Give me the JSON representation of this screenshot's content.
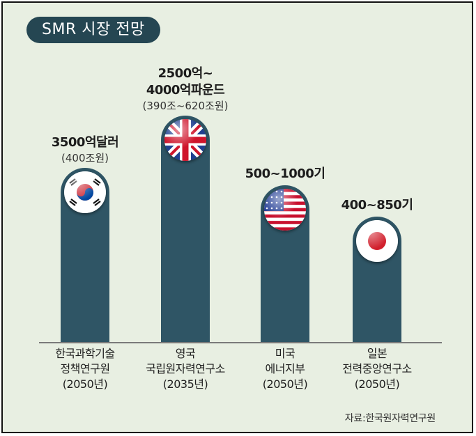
{
  "chart_data": {
    "type": "bar",
    "title": "SMR 시장 전망",
    "categories": [
      {
        "org": "한국과학기술\n정책연구원",
        "year": "(2050년)",
        "country": "korea"
      },
      {
        "org": "영국\n국립원자력연구소",
        "year": "(2035년)",
        "country": "uk"
      },
      {
        "org": "미국\n에너지부",
        "year": "(2050년)",
        "country": "usa"
      },
      {
        "org": "일본\n전력중앙연구소",
        "year": "(2050년)",
        "country": "japan"
      }
    ],
    "labels": [
      {
        "main": "3500억달러",
        "sub": "(400조원)"
      },
      {
        "main": "2500억~\n4000억파운드",
        "sub": "(390조~620조원)"
      },
      {
        "main": "500~1000기",
        "sub": ""
      },
      {
        "main": "400~850기",
        "sub": ""
      }
    ],
    "bar_colors": {
      "bar": "#2f5565",
      "title_bg": "#254652",
      "background": "#e8efe2"
    },
    "source": "자료:한국원자력연구원"
  }
}
